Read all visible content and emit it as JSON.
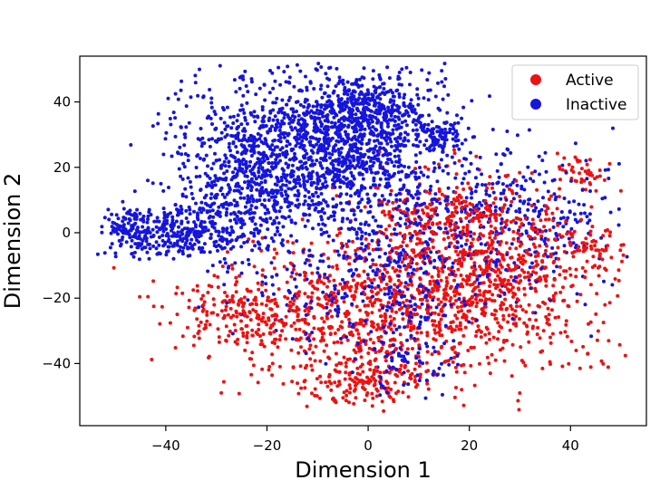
{
  "chart_data": {
    "type": "scatter",
    "title": "",
    "xlabel": "Dimension 1",
    "ylabel": "Dimension 2",
    "xlim": [
      -57,
      55
    ],
    "ylim": [
      -59,
      54
    ],
    "xticks": [
      -40,
      -20,
      0,
      20,
      40
    ],
    "xtick_labels": [
      "−40",
      "−20",
      "0",
      "20",
      "40"
    ],
    "yticks": [
      -40,
      -20,
      0,
      20,
      40
    ],
    "ytick_labels": [
      "−40",
      "−20",
      "0",
      "20",
      "40"
    ],
    "grid": false,
    "legend_position": "top-right",
    "series": [
      {
        "name": "Active",
        "color": "#ee1111",
        "clusters": [
          {
            "cx": 0,
            "cy": -25,
            "sx": 16,
            "sy": 12,
            "n": 900
          },
          {
            "cx": 25,
            "cy": -12,
            "sx": 11,
            "sy": 13,
            "n": 700
          },
          {
            "cx": 15,
            "cy": 5,
            "sx": 8,
            "sy": 6,
            "n": 180
          },
          {
            "cx": -25,
            "cy": -25,
            "sx": 7,
            "sy": 5,
            "n": 150
          },
          {
            "cx": 0,
            "cy": -46,
            "sx": 5,
            "sy": 4,
            "n": 120
          },
          {
            "cx": 43,
            "cy": 18,
            "sx": 2.5,
            "sy": 3,
            "n": 40
          },
          {
            "cx": 45,
            "cy": -5,
            "sx": 3,
            "sy": 4,
            "n": 40
          }
        ]
      },
      {
        "name": "Inactive",
        "color": "#1515dd",
        "clusters": [
          {
            "cx": -10,
            "cy": 25,
            "sx": 13,
            "sy": 11,
            "n": 1500
          },
          {
            "cx": 0,
            "cy": 38,
            "sx": 6,
            "sy": 5,
            "n": 350
          },
          {
            "cx": -38,
            "cy": 0,
            "sx": 8,
            "sy": 4,
            "n": 320
          },
          {
            "cx": -25,
            "cy": 12,
            "sx": 6,
            "sy": 7,
            "n": 220
          },
          {
            "cx": 2,
            "cy": -12,
            "sx": 14,
            "sy": 12,
            "n": 420
          },
          {
            "cx": 28,
            "cy": 5,
            "sx": 12,
            "sy": 10,
            "n": 350
          },
          {
            "cx": 15,
            "cy": 30,
            "sx": 2.5,
            "sy": 2,
            "n": 60
          },
          {
            "cx": -47,
            "cy": 2,
            "sx": 2,
            "sy": 3,
            "n": 80
          },
          {
            "cx": 8,
            "cy": -40,
            "sx": 5,
            "sy": 5,
            "n": 60
          }
        ]
      }
    ]
  }
}
